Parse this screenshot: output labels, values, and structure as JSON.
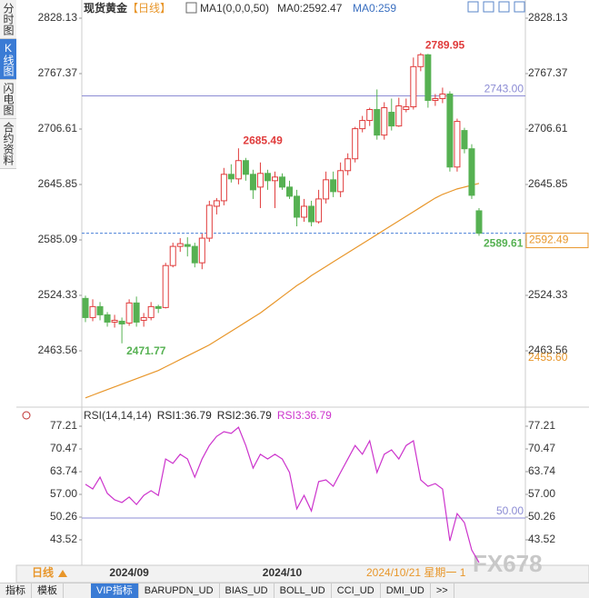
{
  "ui": {
    "sidebar": [
      "分时图",
      "K线图",
      "闪电图",
      "合约资料"
    ],
    "header": {
      "instrument": "现货黄金",
      "period": "【日线】",
      "ma_setting": "MA1(0,0,0,50)",
      "ma_value": "MA0:2592.47",
      "ma_value2": "MA0:259"
    },
    "bottom_bar": {
      "period": "日线",
      "cursor": "2024/10/21 星期一 1"
    },
    "toolbar": [
      "指标",
      "模板",
      "VIP指标",
      "BARUPDN_UD",
      "BIAS_UD",
      "BOLL_UD",
      "CCI_UD",
      "DMI_UD",
      ">>"
    ],
    "toolbar_active": "VIP指标",
    "watermark": "FX678"
  },
  "chart_data": [
    {
      "type": "candlestick",
      "categories": [
        null,
        null,
        null,
        null,
        null,
        null,
        "2024/09",
        null,
        null,
        null,
        null,
        null,
        null,
        null,
        null,
        null,
        null,
        null,
        null,
        null,
        null,
        null,
        null,
        null,
        null,
        null,
        null,
        "2024/10",
        null,
        null,
        null,
        null,
        null,
        null,
        null,
        null,
        null,
        null,
        null,
        null,
        null,
        null,
        null,
        null,
        null,
        null,
        null,
        null,
        null,
        null,
        null,
        null,
        null,
        null,
        null
      ],
      "open": [
        2521,
        2500,
        2512,
        2503,
        2495,
        2496,
        2494,
        2516,
        2497,
        2500,
        2512,
        2511,
        2557,
        2578,
        2580,
        2578,
        2560,
        2587,
        2622,
        2628,
        2657,
        2652,
        2672,
        2657,
        2643,
        2658,
        2650,
        2654,
        2643,
        2633,
        2610,
        2622,
        2605,
        2630,
        2651,
        2638,
        2661,
        2674,
        2707,
        2716,
        2728,
        2700,
        2725,
        2710,
        2728,
        2731,
        2775,
        2788,
        2738,
        2740,
        2745,
        2665,
        2705,
        2685,
        2617
      ],
      "high": [
        2524,
        2520,
        2517,
        2506,
        2503,
        2500,
        2520,
        2523,
        2505,
        2517,
        2514,
        2560,
        2582,
        2587,
        2588,
        2582,
        2592,
        2628,
        2631,
        2664,
        2668,
        2685.49,
        2675,
        2662,
        2670,
        2662,
        2660,
        2658,
        2650,
        2640,
        2630,
        2628,
        2640,
        2660,
        2660,
        2670,
        2680,
        2709,
        2721,
        2730,
        2750,
        2736,
        2740,
        2741,
        2740,
        2785,
        2789.95,
        2789,
        2745,
        2752,
        2748,
        2718,
        2708,
        2690,
        2620
      ],
      "low": [
        2495,
        2496,
        2497,
        2490,
        2489,
        2471.77,
        2491,
        2490,
        2490,
        2497,
        2505,
        2510,
        2555,
        2572,
        2567,
        2555,
        2553,
        2583,
        2613,
        2623,
        2648,
        2646,
        2650,
        2630,
        2620,
        2640,
        2620,
        2640,
        2630,
        2600,
        2605,
        2600,
        2603,
        2625,
        2632,
        2632,
        2656,
        2670,
        2703,
        2710,
        2695,
        2695,
        2705,
        2709,
        2725,
        2728,
        2770,
        2730,
        2732,
        2735,
        2660,
        2660,
        2680,
        2630,
        2589.61
      ],
      "close": [
        2500,
        2512,
        2503,
        2495,
        2497,
        2493,
        2516,
        2495,
        2500,
        2512,
        2510,
        2557,
        2578,
        2581,
        2578,
        2560,
        2587,
        2623,
        2628,
        2657,
        2652,
        2672,
        2657,
        2640,
        2658,
        2650,
        2654,
        2643,
        2633,
        2610,
        2622,
        2605,
        2630,
        2651,
        2638,
        2661,
        2674,
        2707,
        2716,
        2728,
        2700,
        2730,
        2710,
        2732,
        2731,
        2775,
        2788,
        2738,
        2740,
        2745,
        2665,
        2715,
        2685,
        2634,
        2592.47
      ],
      "up_color": "#e03b3b",
      "down_color": "#56b152",
      "ylim": [
        2404.79,
        2833.11
      ],
      "yticks": [
        2463.56,
        2524.33,
        2585.09,
        2645.85,
        2706.61,
        2767.37,
        2828.13
      ],
      "ma": {
        "color": "#e8962a",
        "values": [
          2412,
          2415,
          2418,
          2421,
          2424,
          2427,
          2430,
          2433,
          2436,
          2439,
          2442,
          2446,
          2450,
          2454,
          2458,
          2462,
          2466,
          2470,
          2475,
          2480,
          2485,
          2490,
          2495,
          2500,
          2505,
          2511,
          2517,
          2523,
          2529,
          2535,
          2540,
          2546,
          2551,
          2556,
          2561,
          2566,
          2571,
          2576,
          2581,
          2586,
          2591,
          2596,
          2601,
          2606,
          2611,
          2616,
          2621,
          2626,
          2631,
          2635,
          2638,
          2641,
          2643,
          2645,
          2647
        ]
      },
      "hlines": [
        {
          "value": 2743,
          "label": "2743.00",
          "color": "#8c8cd4",
          "dashed": false
        },
        {
          "value": 2592.49,
          "color": "#4a80d8",
          "dashed": true
        }
      ],
      "extremes": [
        2789.95,
        2685.49,
        2471.77,
        2589.61
      ],
      "side_label": {
        "value": 2455.6,
        "label": "2455.60",
        "color": "#e8962a"
      }
    },
    {
      "type": "line",
      "title": "RSI(14,14,14)",
      "legend": [
        {
          "text": "RSI1:36.79",
          "color": "#222222"
        },
        {
          "text": "RSI2:36.79",
          "color": "#222222"
        },
        {
          "text": "RSI3:36.79",
          "color": "#cc33cc"
        }
      ],
      "color": "#cc33cc",
      "values": [
        60.0,
        58.6,
        62.1,
        57.3,
        55.4,
        54.6,
        56.2,
        54.0,
        56.7,
        58.1,
        56.7,
        67.5,
        66.2,
        68.9,
        67.5,
        62.1,
        67.5,
        71.5,
        74.2,
        75.6,
        75.1,
        76.9,
        71.5,
        64.8,
        68.9,
        67.5,
        68.9,
        67.5,
        63.5,
        52.7,
        56.7,
        52.1,
        60.8,
        61.3,
        59.4,
        63.5,
        67.5,
        71.5,
        68.9,
        72.9,
        63.5,
        68.9,
        70.2,
        67.5,
        71.5,
        72.9,
        61.3,
        59.4,
        60.2,
        58.6,
        43.2,
        51.3,
        48.6,
        40.5,
        36.79
      ],
      "ylim": [
        35.97,
        79.1
      ],
      "yticks": [
        43.52,
        50.26,
        {
          "value": 57,
          "label": "57.00"
        },
        63.74,
        70.47,
        77.21
      ],
      "hlines": [
        {
          "value": 50,
          "label": "50.00",
          "color": "#8c8cd4",
          "dashed": false
        }
      ]
    }
  ]
}
